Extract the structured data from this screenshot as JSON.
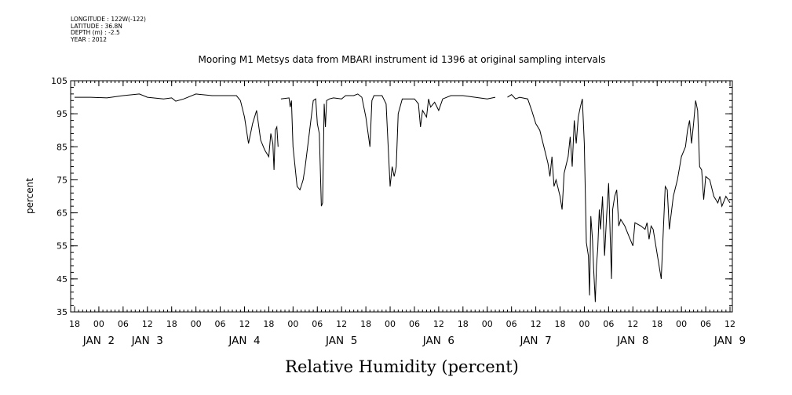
{
  "metadata": {
    "longitude": "LONGITUDE : 122W(-122)",
    "latitude": "LATITUDE : 36.8N",
    "depth": "DEPTH (m) : -2.5",
    "year": "YEAR : 2012"
  },
  "chart_data": {
    "type": "line",
    "title": "Mooring M1 Metsys data from MBARI instrument id 1396 at original sampling intervals",
    "xlabel": "Relative Humidity (percent)",
    "ylabel": "percent",
    "ylim": [
      35,
      105
    ],
    "yticks": [
      35,
      45,
      55,
      65,
      75,
      85,
      95,
      105
    ],
    "grid": false,
    "x_units": "hours since 2012-01-01 18:00",
    "xlim": [
      0,
      162
    ],
    "x_hour_ticks": [
      {
        "x": 0,
        "label": "18"
      },
      {
        "x": 6,
        "label": "00"
      },
      {
        "x": 12,
        "label": "06"
      },
      {
        "x": 18,
        "label": "12"
      },
      {
        "x": 24,
        "label": "18"
      },
      {
        "x": 30,
        "label": "00"
      },
      {
        "x": 36,
        "label": "06"
      },
      {
        "x": 42,
        "label": "12"
      },
      {
        "x": 48,
        "label": "18"
      },
      {
        "x": 54,
        "label": "00"
      },
      {
        "x": 60,
        "label": "06"
      },
      {
        "x": 66,
        "label": "12"
      },
      {
        "x": 72,
        "label": "18"
      },
      {
        "x": 78,
        "label": "00"
      },
      {
        "x": 84,
        "label": "06"
      },
      {
        "x": 90,
        "label": "12"
      },
      {
        "x": 96,
        "label": "18"
      },
      {
        "x": 102,
        "label": "00"
      },
      {
        "x": 108,
        "label": "06"
      },
      {
        "x": 114,
        "label": "12"
      },
      {
        "x": 120,
        "label": "18"
      },
      {
        "x": 126,
        "label": "00"
      },
      {
        "x": 132,
        "label": "06"
      },
      {
        "x": 138,
        "label": "12"
      },
      {
        "x": 144,
        "label": "18"
      },
      {
        "x": 150,
        "label": "00"
      },
      {
        "x": 156,
        "label": "06"
      },
      {
        "x": 162,
        "label": "12"
      }
    ],
    "x_date_labels": [
      {
        "x": 6,
        "label": "JAN  2"
      },
      {
        "x": 18,
        "label": "JAN  3"
      },
      {
        "x": 42,
        "label": "JAN  4"
      },
      {
        "x": 66,
        "label": "JAN  5"
      },
      {
        "x": 90,
        "label": "JAN  6"
      },
      {
        "x": 114,
        "label": "JAN  7"
      },
      {
        "x": 138,
        "label": "JAN  8"
      },
      {
        "x": 162,
        "label": "JAN  9"
      }
    ],
    "series": [
      {
        "segments": [
          [
            [
              0,
              100
            ],
            [
              4,
              100
            ],
            [
              8,
              99.8
            ],
            [
              12,
              100.5
            ],
            [
              16,
              101
            ],
            [
              18,
              100
            ],
            [
              22,
              99.5
            ],
            [
              24,
              99.8
            ],
            [
              25,
              98.8
            ],
            [
              27,
              99.5
            ],
            [
              30,
              101
            ],
            [
              34,
              100.5
            ],
            [
              40,
              100.5
            ],
            [
              41,
              99
            ],
            [
              42,
              94
            ],
            [
              43,
              86
            ],
            [
              44,
              92
            ],
            [
              45,
              96
            ],
            [
              46,
              87
            ],
            [
              47,
              84
            ],
            [
              48,
              82
            ],
            [
              48.5,
              89
            ],
            [
              49,
              86
            ],
            [
              49.3,
              78
            ],
            [
              49.6,
              90
            ],
            [
              50,
              91
            ],
            [
              50.3,
              85
            ]
          ],
          [
            [
              51,
              99.5
            ],
            [
              53,
              99.8
            ],
            [
              53.3,
              97
            ],
            [
              53.6,
              99
            ],
            [
              54,
              85
            ],
            [
              55,
              73
            ],
            [
              55.7,
              72
            ],
            [
              56,
              73
            ],
            [
              56.5,
              75
            ],
            [
              57,
              79
            ],
            [
              58,
              89
            ],
            [
              59,
              99
            ],
            [
              59.6,
              99.5
            ],
            [
              60,
              92
            ],
            [
              60.5,
              89
            ],
            [
              61,
              67
            ],
            [
              61.3,
              68
            ],
            [
              61.7,
              98
            ],
            [
              62,
              91
            ],
            [
              62.3,
              99
            ],
            [
              63,
              99.5
            ],
            [
              64,
              99.8
            ],
            [
              66,
              99.5
            ],
            [
              67,
              100.5
            ],
            [
              69,
              100.5
            ],
            [
              70,
              101
            ],
            [
              71,
              100
            ],
            [
              72,
              94
            ],
            [
              73,
              85
            ],
            [
              73.5,
              99
            ],
            [
              74,
              100.5
            ],
            [
              76,
              100.5
            ],
            [
              77,
              98
            ],
            [
              78,
              73
            ],
            [
              78.5,
              79
            ],
            [
              79,
              76
            ],
            [
              79.5,
              79
            ],
            [
              80,
              95
            ],
            [
              81,
              99.5
            ],
            [
              84,
              99.5
            ],
            [
              85,
              98
            ],
            [
              85.5,
              91
            ],
            [
              86,
              96
            ],
            [
              87,
              94
            ],
            [
              87.5,
              99.5
            ],
            [
              88,
              97
            ],
            [
              89,
              98.5
            ],
            [
              90,
              96
            ],
            [
              91,
              99.5
            ],
            [
              93,
              100.5
            ],
            [
              96,
              100.5
            ],
            [
              99,
              100
            ],
            [
              102,
              99.5
            ],
            [
              104,
              100
            ]
          ],
          [
            [
              107,
              100
            ],
            [
              108,
              100.8
            ],
            [
              109,
              99.5
            ],
            [
              110,
              100
            ],
            [
              112,
              99.5
            ],
            [
              113,
              96
            ],
            [
              114,
              92
            ],
            [
              115,
              90
            ],
            [
              116,
              85
            ],
            [
              117,
              80
            ],
            [
              117.5,
              76
            ],
            [
              118,
              82
            ],
            [
              118.5,
              73
            ],
            [
              119,
              75
            ],
            [
              120,
              70
            ],
            [
              120.5,
              66
            ],
            [
              121,
              77
            ],
            [
              122,
              82
            ],
            [
              122.5,
              88
            ],
            [
              123,
              79
            ],
            [
              123.5,
              93
            ],
            [
              124,
              86
            ],
            [
              124.5,
              94
            ],
            [
              125,
              97
            ],
            [
              125.5,
              99.5
            ],
            [
              126,
              86
            ],
            [
              126.5,
              56
            ],
            [
              127,
              52
            ],
            [
              127.3,
              40
            ],
            [
              127.6,
              64
            ],
            [
              128,
              57
            ],
            [
              128.3,
              48
            ],
            [
              128.7,
              38
            ],
            [
              129,
              49
            ],
            [
              129.3,
              54
            ],
            [
              129.7,
              66
            ],
            [
              130,
              60
            ],
            [
              130.5,
              70
            ],
            [
              131,
              52
            ],
            [
              131.5,
              64
            ],
            [
              132,
              74
            ],
            [
              132.3,
              62
            ],
            [
              132.7,
              45
            ],
            [
              133,
              66
            ],
            [
              133.5,
              70
            ],
            [
              134,
              72
            ],
            [
              134.5,
              61
            ],
            [
              135,
              63
            ],
            [
              136,
              61
            ],
            [
              137,
              58
            ],
            [
              138,
              55
            ],
            [
              138.5,
              62
            ],
            [
              140,
              61
            ],
            [
              141,
              60
            ],
            [
              141.5,
              62
            ],
            [
              142,
              57
            ],
            [
              142.5,
              61
            ],
            [
              143,
              60
            ],
            [
              145,
              45
            ],
            [
              146,
              73
            ],
            [
              146.5,
              72
            ],
            [
              147,
              60
            ],
            [
              148,
              70
            ],
            [
              149,
              75
            ],
            [
              150,
              82
            ],
            [
              151,
              85
            ],
            [
              151.5,
              90
            ],
            [
              152,
              93
            ],
            [
              152.5,
              86
            ],
            [
              153,
              92
            ],
            [
              153.5,
              99
            ],
            [
              154,
              96
            ],
            [
              154.5,
              79
            ],
            [
              155,
              78
            ],
            [
              155.5,
              69
            ],
            [
              156,
              76
            ],
            [
              157,
              75
            ],
            [
              158,
              70
            ],
            [
              159,
              68
            ],
            [
              159.5,
              70
            ],
            [
              160,
              67
            ],
            [
              161,
              70
            ],
            [
              162,
              68
            ]
          ]
        ]
      }
    ]
  }
}
